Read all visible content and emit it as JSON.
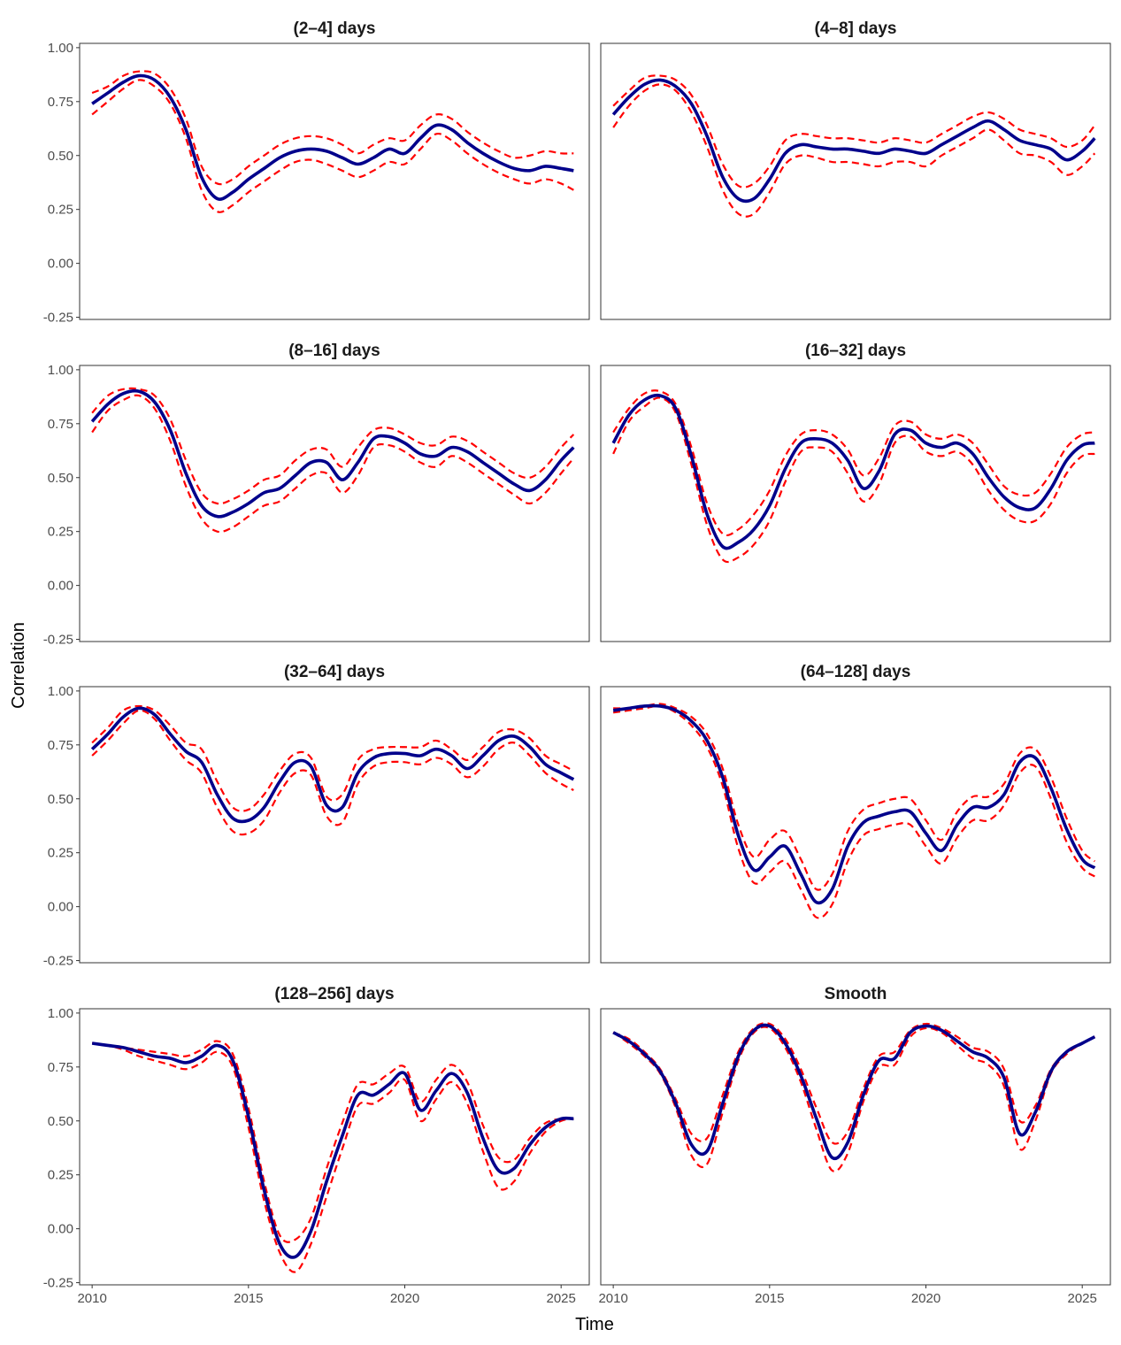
{
  "chart_data": {
    "type": "line",
    "xlabel": "Time",
    "ylabel": "Correlation",
    "xlim": [
      2009.6,
      2025.9
    ],
    "ylim": [
      -0.26,
      1.02
    ],
    "x_ticks": [
      2010,
      2015,
      2020,
      2025
    ],
    "x_tick_labels": [
      "2010",
      "2015",
      "2020",
      "2025"
    ],
    "y_ticks": [
      -0.25,
      0,
      0.25,
      0.5,
      0.75,
      1.0
    ],
    "y_tick_labels": [
      "-0.25",
      "0.00",
      "0.25",
      "0.50",
      "0.75",
      "1.00"
    ],
    "colors": {
      "estimate": "#00008B",
      "bounds": "#FF0000",
      "panel_border": "#333333",
      "tick": "#333333",
      "tick_label": "#4d4d4d"
    },
    "line_styles": {
      "estimate": "solid",
      "bounds": "dashed"
    },
    "grid": false,
    "legend": "none",
    "panels": [
      {
        "title": "(2–4] days",
        "x": [
          2010,
          2010.5,
          2011,
          2011.5,
          2012,
          2012.5,
          2013,
          2013.5,
          2014,
          2014.5,
          2015,
          2015.5,
          2016,
          2016.5,
          2017,
          2017.5,
          2018,
          2018.5,
          2019,
          2019.5,
          2020,
          2020.5,
          2021,
          2021.5,
          2022,
          2022.5,
          2023,
          2023.5,
          2024,
          2024.5,
          2025,
          2025.4
        ],
        "mid": [
          0.74,
          0.79,
          0.84,
          0.87,
          0.85,
          0.77,
          0.62,
          0.4,
          0.3,
          0.33,
          0.39,
          0.44,
          0.49,
          0.52,
          0.53,
          0.52,
          0.49,
          0.46,
          0.49,
          0.53,
          0.51,
          0.58,
          0.64,
          0.62,
          0.56,
          0.51,
          0.47,
          0.44,
          0.43,
          0.45,
          0.44,
          0.43
        ],
        "upper": [
          0.79,
          0.82,
          0.87,
          0.89,
          0.88,
          0.81,
          0.67,
          0.45,
          0.37,
          0.39,
          0.45,
          0.5,
          0.55,
          0.58,
          0.59,
          0.58,
          0.55,
          0.51,
          0.55,
          0.58,
          0.57,
          0.64,
          0.69,
          0.67,
          0.61,
          0.56,
          0.52,
          0.49,
          0.5,
          0.52,
          0.51,
          0.51
        ],
        "lower": [
          0.69,
          0.75,
          0.81,
          0.85,
          0.82,
          0.74,
          0.58,
          0.34,
          0.24,
          0.27,
          0.33,
          0.38,
          0.43,
          0.47,
          0.48,
          0.46,
          0.43,
          0.4,
          0.43,
          0.47,
          0.46,
          0.53,
          0.6,
          0.57,
          0.51,
          0.46,
          0.42,
          0.39,
          0.37,
          0.39,
          0.37,
          0.34
        ]
      },
      {
        "title": "(4–8] days",
        "x": [
          2010,
          2010.5,
          2011,
          2011.5,
          2012,
          2012.5,
          2013,
          2013.5,
          2014,
          2014.5,
          2015,
          2015.5,
          2016,
          2016.5,
          2017,
          2017.5,
          2018,
          2018.5,
          2019,
          2019.5,
          2020,
          2020.5,
          2021,
          2021.5,
          2022,
          2022.5,
          2023,
          2023.5,
          2024,
          2024.5,
          2025,
          2025.4
        ],
        "mid": [
          0.69,
          0.77,
          0.83,
          0.85,
          0.82,
          0.74,
          0.59,
          0.4,
          0.3,
          0.3,
          0.39,
          0.51,
          0.55,
          0.54,
          0.53,
          0.53,
          0.52,
          0.51,
          0.53,
          0.52,
          0.51,
          0.55,
          0.59,
          0.63,
          0.66,
          0.62,
          0.57,
          0.55,
          0.53,
          0.48,
          0.52,
          0.58
        ],
        "upper": [
          0.73,
          0.8,
          0.86,
          0.87,
          0.85,
          0.78,
          0.64,
          0.46,
          0.36,
          0.37,
          0.45,
          0.57,
          0.6,
          0.59,
          0.58,
          0.58,
          0.57,
          0.56,
          0.58,
          0.57,
          0.56,
          0.6,
          0.64,
          0.68,
          0.7,
          0.67,
          0.62,
          0.6,
          0.58,
          0.54,
          0.57,
          0.64
        ],
        "lower": [
          0.63,
          0.73,
          0.8,
          0.83,
          0.8,
          0.7,
          0.54,
          0.34,
          0.23,
          0.23,
          0.33,
          0.46,
          0.5,
          0.49,
          0.47,
          0.47,
          0.46,
          0.45,
          0.47,
          0.47,
          0.45,
          0.5,
          0.54,
          0.58,
          0.62,
          0.57,
          0.51,
          0.5,
          0.47,
          0.41,
          0.45,
          0.51
        ]
      },
      {
        "title": "(8–16] days",
        "x": [
          2010,
          2010.5,
          2011,
          2011.5,
          2012,
          2012.5,
          2013,
          2013.5,
          2014,
          2014.5,
          2015,
          2015.5,
          2016,
          2016.5,
          2017,
          2017.5,
          2018,
          2018.5,
          2019,
          2019.5,
          2020,
          2020.5,
          2021,
          2021.5,
          2022,
          2022.5,
          2023,
          2023.5,
          2024,
          2024.5,
          2025,
          2025.4
        ],
        "mid": [
          0.76,
          0.84,
          0.89,
          0.9,
          0.85,
          0.72,
          0.52,
          0.37,
          0.32,
          0.34,
          0.38,
          0.43,
          0.45,
          0.51,
          0.57,
          0.57,
          0.49,
          0.57,
          0.68,
          0.69,
          0.66,
          0.61,
          0.6,
          0.64,
          0.62,
          0.57,
          0.52,
          0.47,
          0.44,
          0.49,
          0.58,
          0.64
        ],
        "upper": [
          0.8,
          0.88,
          0.91,
          0.91,
          0.88,
          0.77,
          0.58,
          0.43,
          0.38,
          0.4,
          0.44,
          0.49,
          0.51,
          0.58,
          0.63,
          0.63,
          0.55,
          0.64,
          0.72,
          0.73,
          0.7,
          0.66,
          0.65,
          0.69,
          0.67,
          0.62,
          0.57,
          0.52,
          0.5,
          0.55,
          0.64,
          0.7
        ],
        "lower": [
          0.71,
          0.81,
          0.86,
          0.88,
          0.82,
          0.67,
          0.46,
          0.31,
          0.25,
          0.27,
          0.32,
          0.37,
          0.39,
          0.45,
          0.51,
          0.52,
          0.43,
          0.51,
          0.64,
          0.65,
          0.62,
          0.57,
          0.55,
          0.6,
          0.57,
          0.52,
          0.47,
          0.42,
          0.38,
          0.43,
          0.52,
          0.59
        ]
      },
      {
        "title": "(16–32] days",
        "x": [
          2010,
          2010.5,
          2011,
          2011.5,
          2012,
          2012.5,
          2013,
          2013.5,
          2014,
          2014.5,
          2015,
          2015.5,
          2016,
          2016.5,
          2017,
          2017.5,
          2018,
          2018.5,
          2019,
          2019.5,
          2020,
          2020.5,
          2021,
          2021.5,
          2022,
          2022.5,
          2023,
          2023.5,
          2024,
          2024.5,
          2025,
          2025.4
        ],
        "mid": [
          0.66,
          0.79,
          0.86,
          0.88,
          0.82,
          0.6,
          0.33,
          0.18,
          0.2,
          0.26,
          0.37,
          0.54,
          0.66,
          0.68,
          0.66,
          0.58,
          0.45,
          0.53,
          0.7,
          0.72,
          0.66,
          0.64,
          0.66,
          0.61,
          0.5,
          0.41,
          0.36,
          0.36,
          0.45,
          0.58,
          0.65,
          0.66
        ],
        "upper": [
          0.71,
          0.82,
          0.89,
          0.9,
          0.84,
          0.64,
          0.38,
          0.24,
          0.26,
          0.33,
          0.44,
          0.6,
          0.7,
          0.72,
          0.7,
          0.63,
          0.51,
          0.59,
          0.74,
          0.76,
          0.7,
          0.68,
          0.7,
          0.66,
          0.56,
          0.46,
          0.42,
          0.43,
          0.52,
          0.64,
          0.7,
          0.71
        ],
        "lower": [
          0.61,
          0.76,
          0.83,
          0.87,
          0.8,
          0.56,
          0.28,
          0.12,
          0.13,
          0.19,
          0.3,
          0.48,
          0.62,
          0.64,
          0.62,
          0.52,
          0.39,
          0.47,
          0.66,
          0.69,
          0.62,
          0.6,
          0.62,
          0.56,
          0.44,
          0.35,
          0.3,
          0.3,
          0.38,
          0.52,
          0.6,
          0.61
        ]
      },
      {
        "title": "(32–64] days",
        "x": [
          2010,
          2010.5,
          2011,
          2011.5,
          2012,
          2012.5,
          2013,
          2013.5,
          2014,
          2014.5,
          2015,
          2015.5,
          2016,
          2016.5,
          2017,
          2017.5,
          2018,
          2018.5,
          2019,
          2019.5,
          2020,
          2020.5,
          2021,
          2021.5,
          2022,
          2022.5,
          2023,
          2023.5,
          2024,
          2024.5,
          2025,
          2025.4
        ],
        "mid": [
          0.73,
          0.8,
          0.88,
          0.92,
          0.89,
          0.8,
          0.72,
          0.67,
          0.52,
          0.41,
          0.4,
          0.46,
          0.58,
          0.67,
          0.65,
          0.47,
          0.46,
          0.62,
          0.69,
          0.71,
          0.71,
          0.7,
          0.73,
          0.7,
          0.64,
          0.7,
          0.77,
          0.79,
          0.74,
          0.66,
          0.62,
          0.59
        ],
        "upper": [
          0.76,
          0.83,
          0.91,
          0.93,
          0.91,
          0.84,
          0.76,
          0.73,
          0.58,
          0.46,
          0.45,
          0.52,
          0.63,
          0.71,
          0.69,
          0.51,
          0.52,
          0.68,
          0.73,
          0.74,
          0.74,
          0.74,
          0.77,
          0.73,
          0.68,
          0.74,
          0.81,
          0.82,
          0.78,
          0.7,
          0.66,
          0.63
        ],
        "lower": [
          0.7,
          0.77,
          0.85,
          0.91,
          0.87,
          0.77,
          0.68,
          0.62,
          0.46,
          0.35,
          0.34,
          0.4,
          0.53,
          0.62,
          0.61,
          0.42,
          0.39,
          0.57,
          0.65,
          0.67,
          0.67,
          0.66,
          0.69,
          0.66,
          0.6,
          0.65,
          0.73,
          0.76,
          0.7,
          0.62,
          0.57,
          0.54
        ]
      },
      {
        "title": "(64–128] days",
        "x": [
          2010,
          2010.5,
          2011,
          2011.5,
          2012,
          2012.5,
          2013,
          2013.5,
          2014,
          2014.5,
          2015,
          2015.5,
          2016,
          2016.5,
          2017,
          2017.5,
          2018,
          2018.5,
          2019,
          2019.5,
          2020,
          2020.5,
          2021,
          2021.5,
          2022,
          2022.5,
          2023,
          2023.5,
          2024,
          2024.5,
          2025,
          2025.4
        ],
        "mid": [
          0.91,
          0.92,
          0.93,
          0.93,
          0.91,
          0.86,
          0.77,
          0.6,
          0.33,
          0.17,
          0.23,
          0.28,
          0.15,
          0.02,
          0.08,
          0.28,
          0.39,
          0.42,
          0.44,
          0.44,
          0.34,
          0.26,
          0.38,
          0.46,
          0.46,
          0.52,
          0.67,
          0.69,
          0.55,
          0.36,
          0.22,
          0.18
        ],
        "upper": [
          0.92,
          0.92,
          0.93,
          0.94,
          0.92,
          0.88,
          0.8,
          0.64,
          0.38,
          0.23,
          0.31,
          0.35,
          0.22,
          0.08,
          0.15,
          0.35,
          0.45,
          0.48,
          0.5,
          0.5,
          0.4,
          0.31,
          0.44,
          0.51,
          0.51,
          0.57,
          0.71,
          0.73,
          0.6,
          0.41,
          0.26,
          0.21
        ],
        "lower": [
          0.9,
          0.91,
          0.92,
          0.93,
          0.9,
          0.84,
          0.74,
          0.56,
          0.27,
          0.11,
          0.16,
          0.21,
          0.08,
          -0.05,
          0.01,
          0.21,
          0.33,
          0.36,
          0.38,
          0.38,
          0.28,
          0.2,
          0.32,
          0.4,
          0.4,
          0.47,
          0.62,
          0.65,
          0.5,
          0.3,
          0.18,
          0.14
        ]
      },
      {
        "title": "(128–256] days",
        "x": [
          2010,
          2010.5,
          2011,
          2011.5,
          2012,
          2012.5,
          2013,
          2013.5,
          2014,
          2014.5,
          2015,
          2015.5,
          2016,
          2016.5,
          2017,
          2017.5,
          2018,
          2018.5,
          2019,
          2019.5,
          2020,
          2020.5,
          2021,
          2021.5,
          2022,
          2022.5,
          2023,
          2023.5,
          2024,
          2024.5,
          2025,
          2025.4
        ],
        "mid": [
          0.86,
          0.85,
          0.84,
          0.82,
          0.8,
          0.79,
          0.77,
          0.8,
          0.85,
          0.78,
          0.52,
          0.18,
          -0.07,
          -0.13,
          -0.01,
          0.22,
          0.43,
          0.62,
          0.62,
          0.67,
          0.72,
          0.55,
          0.64,
          0.72,
          0.63,
          0.42,
          0.27,
          0.28,
          0.39,
          0.47,
          0.51,
          0.51
        ],
        "upper": [
          0.86,
          0.85,
          0.84,
          0.83,
          0.82,
          0.81,
          0.8,
          0.83,
          0.87,
          0.81,
          0.56,
          0.22,
          -0.03,
          -0.05,
          0.05,
          0.28,
          0.49,
          0.67,
          0.67,
          0.72,
          0.75,
          0.59,
          0.69,
          0.76,
          0.68,
          0.48,
          0.33,
          0.32,
          0.42,
          0.49,
          0.51,
          0.51
        ],
        "lower": [
          0.86,
          0.85,
          0.83,
          0.8,
          0.78,
          0.76,
          0.74,
          0.77,
          0.82,
          0.75,
          0.47,
          0.13,
          -0.11,
          -0.2,
          -0.07,
          0.15,
          0.37,
          0.57,
          0.58,
          0.63,
          0.69,
          0.5,
          0.6,
          0.68,
          0.58,
          0.36,
          0.19,
          0.22,
          0.35,
          0.45,
          0.5,
          0.51
        ]
      },
      {
        "title": "Smooth",
        "x": [
          2010,
          2010.5,
          2011,
          2011.5,
          2012,
          2012.5,
          2013,
          2013.5,
          2014,
          2014.5,
          2015,
          2015.5,
          2016,
          2016.5,
          2017,
          2017.5,
          2018,
          2018.5,
          2019,
          2019.5,
          2020,
          2020.5,
          2021,
          2021.5,
          2022,
          2022.5,
          2023,
          2023.5,
          2024,
          2024.5,
          2025,
          2025.4
        ],
        "mid": [
          0.91,
          0.87,
          0.81,
          0.73,
          0.58,
          0.39,
          0.36,
          0.58,
          0.8,
          0.92,
          0.94,
          0.86,
          0.71,
          0.51,
          0.33,
          0.4,
          0.62,
          0.78,
          0.79,
          0.91,
          0.94,
          0.92,
          0.87,
          0.82,
          0.79,
          0.7,
          0.44,
          0.54,
          0.73,
          0.82,
          0.86,
          0.89
        ],
        "upper": [
          0.91,
          0.88,
          0.82,
          0.74,
          0.6,
          0.44,
          0.42,
          0.62,
          0.82,
          0.93,
          0.95,
          0.88,
          0.74,
          0.56,
          0.4,
          0.45,
          0.65,
          0.8,
          0.82,
          0.92,
          0.95,
          0.93,
          0.89,
          0.84,
          0.82,
          0.74,
          0.5,
          0.57,
          0.74,
          0.82,
          0.86,
          0.89
        ],
        "lower": [
          0.91,
          0.86,
          0.8,
          0.72,
          0.56,
          0.34,
          0.3,
          0.54,
          0.78,
          0.91,
          0.93,
          0.84,
          0.68,
          0.46,
          0.27,
          0.35,
          0.59,
          0.75,
          0.76,
          0.89,
          0.93,
          0.91,
          0.85,
          0.79,
          0.76,
          0.66,
          0.37,
          0.5,
          0.72,
          0.81,
          0.86,
          0.89
        ]
      }
    ]
  }
}
